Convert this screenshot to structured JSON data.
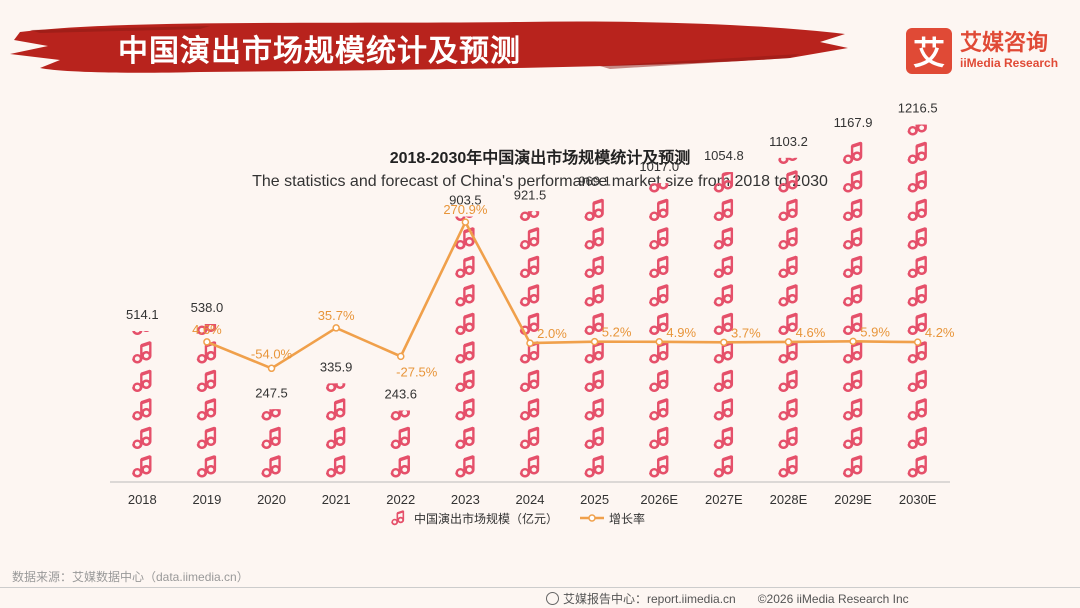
{
  "header": {
    "title": "中国演出市场规模统计及预测",
    "logo_mark": "艾",
    "logo_cn": "艾媒咨询",
    "logo_en": "iiMedia Research"
  },
  "chart_data": {
    "type": "bar",
    "title": "2018-2030年中国演出市场规模统计及预测",
    "subtitle": "The statistics and forecast of China's performance market size from 2018 to 2030",
    "categories": [
      "2018",
      "2019",
      "2020",
      "2021",
      "2022",
      "2023",
      "2024",
      "2025",
      "2026E",
      "2027E",
      "2028E",
      "2029E",
      "2030E"
    ],
    "series": [
      {
        "name": "中国演出市场规模（亿元）",
        "kind": "pictogram-bar",
        "values": [
          514.1,
          538.0,
          247.5,
          335.9,
          243.6,
          903.5,
          921.5,
          969.1,
          1017.0,
          1054.8,
          1103.2,
          1167.9,
          1216.5
        ],
        "labels": [
          "514.1",
          "538.0",
          "247.5",
          "335.9",
          "243.6",
          "903.5",
          "921.5",
          "969.1",
          "1017.0",
          "1054.8",
          "1103.2",
          "1167.9",
          "1216.5"
        ]
      },
      {
        "name": "增长率",
        "kind": "line",
        "values": [
          null,
          4.6,
          -54.0,
          35.7,
          -27.5,
          270.9,
          2.0,
          5.2,
          4.9,
          3.7,
          4.6,
          5.9,
          4.2
        ],
        "labels": [
          "",
          "4.6%",
          "-54.0%",
          "35.7%",
          "-27.5%",
          "270.9%",
          "2.0%",
          "5.2%",
          "4.9%",
          "3.7%",
          "4.6%",
          "5.9%",
          "4.2%"
        ]
      }
    ],
    "colors": {
      "bar": "#e5506a",
      "line": "#f0a04b",
      "line_label": "#e8953a"
    },
    "bar_ylim": [
      0,
      1300
    ],
    "legend_position": "bottom-center"
  },
  "source": "数据来源：艾媒数据中心（data.iimedia.cn）",
  "footer": {
    "report": "艾媒报告中心：report.iimedia.cn",
    "copyright": "©2026  iiMedia Research  Inc"
  }
}
